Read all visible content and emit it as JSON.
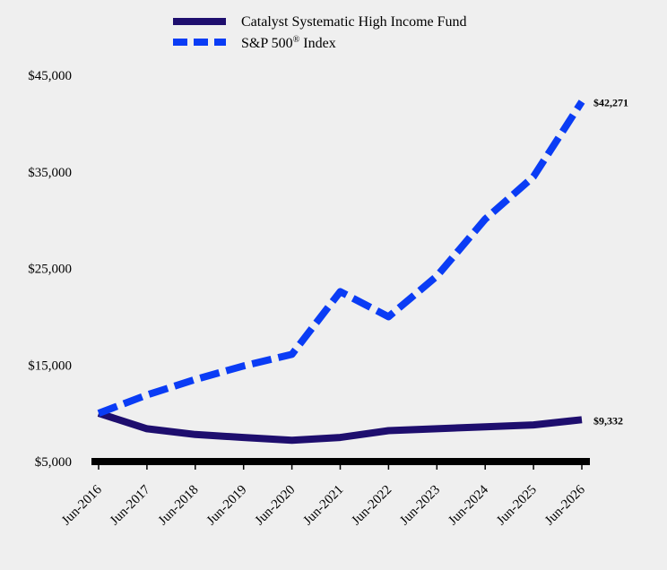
{
  "chart_data": {
    "type": "line",
    "categories": [
      "Jun-2016",
      "Jun-2017",
      "Jun-2018",
      "Jun-2019",
      "Jun-2020",
      "Jun-2021",
      "Jun-2022",
      "Jun-2023",
      "Jun-2024",
      "Jun-2025",
      "Jun-2026"
    ],
    "series": [
      {
        "name": "Catalyst Systematic High Income Fund",
        "values": [
          10000,
          8400,
          7800,
          7500,
          7200,
          7500,
          8200,
          8400,
          8600,
          8800,
          9332
        ],
        "color": "#1e0e6e",
        "style": "solid",
        "end_label": "$9,332"
      },
      {
        "name": "S&P 500",
        "name_superscript": "®",
        "name_suffix": " Index",
        "values": [
          10000,
          11900,
          13500,
          14900,
          16100,
          22600,
          20000,
          24200,
          30100,
          34500,
          42271
        ],
        "color": "#0a3cf5",
        "style": "dashed",
        "end_label": "$42,271"
      }
    ],
    "y_ticks": [
      "$5,000",
      "$15,000",
      "$25,000",
      "$35,000",
      "$45,000"
    ],
    "y_tick_values": [
      5000,
      15000,
      25000,
      35000,
      45000
    ],
    "ylim": [
      5000,
      45000
    ],
    "legend_position": "top-center",
    "grid": false
  }
}
